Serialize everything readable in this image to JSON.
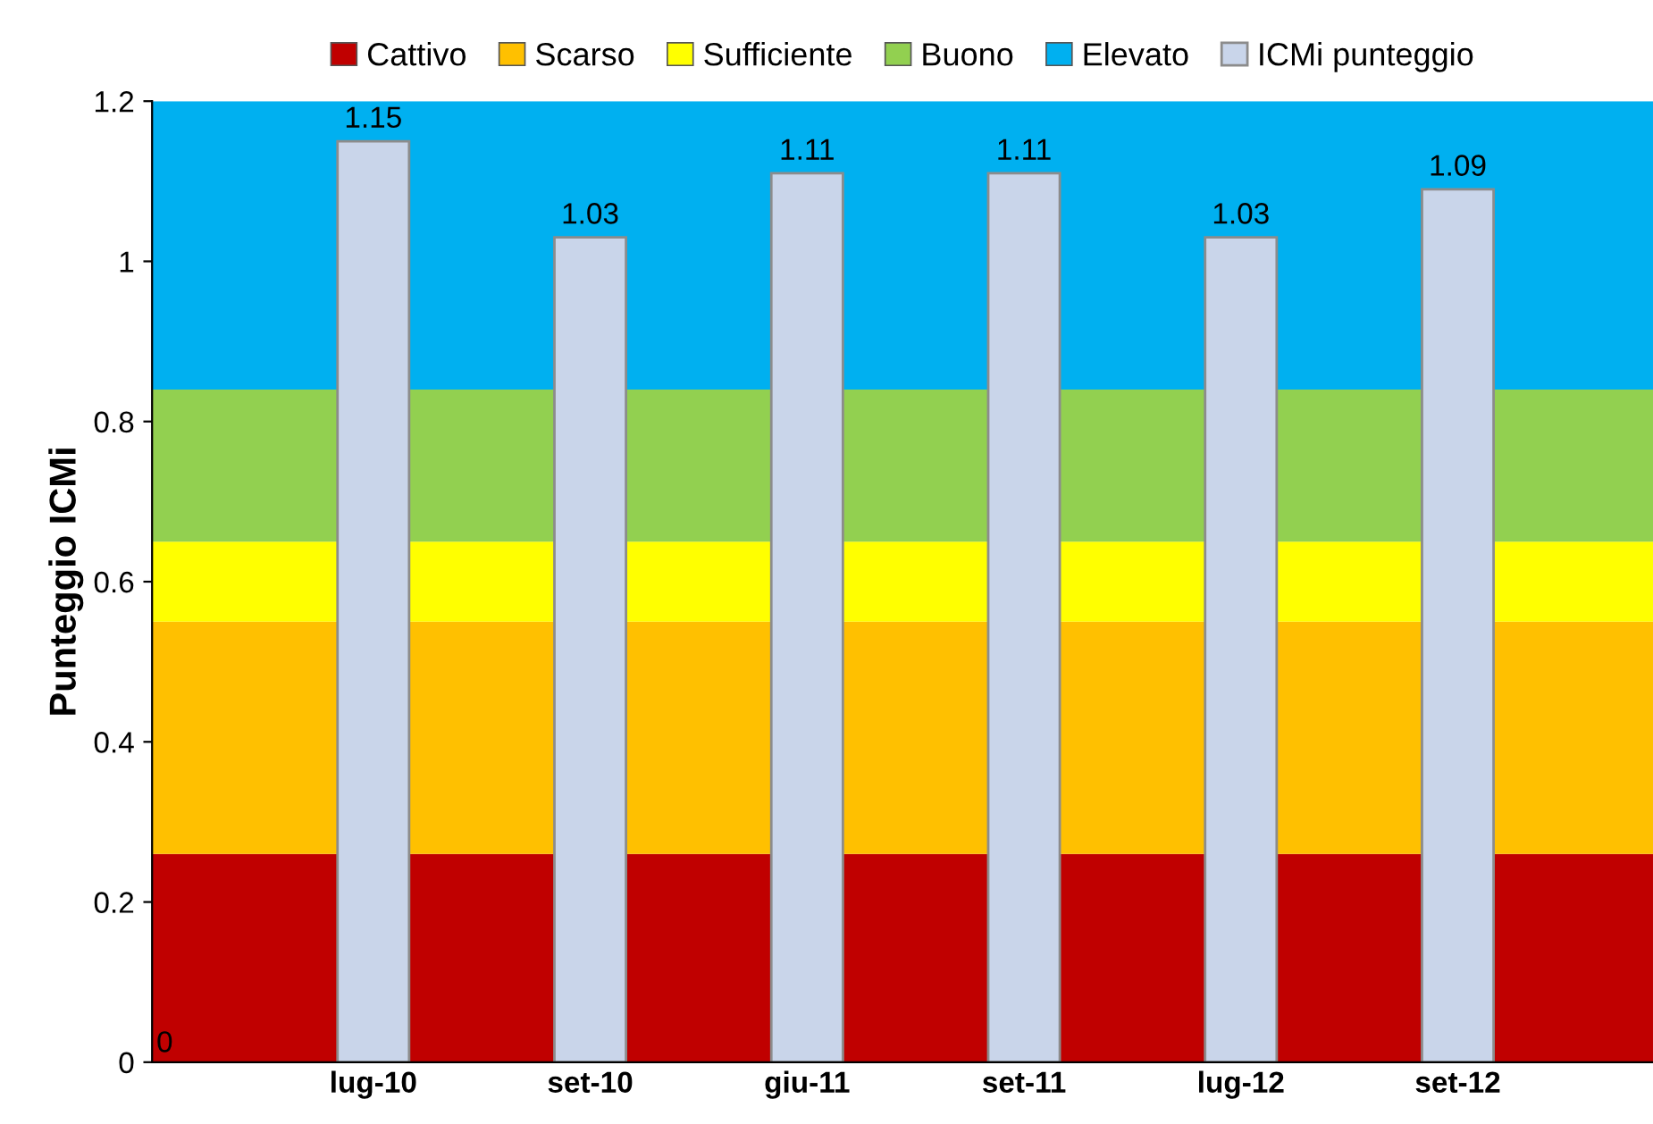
{
  "chart_data": {
    "type": "bar",
    "ylabel": "Punteggio ICMi",
    "categories": [
      "lug-10",
      "set-10",
      "giu-11",
      "set-11",
      "lug-12",
      "set-12"
    ],
    "series": [
      {
        "name": "ICMi punteggio",
        "color": "#c9d5ea",
        "values": [
          1.15,
          1.03,
          1.11,
          1.11,
          1.03,
          1.09
        ]
      }
    ],
    "bands": [
      {
        "axis": "y",
        "from": 0,
        "to": 0.26,
        "label": "Cattivo",
        "color": "#c00000"
      },
      {
        "axis": "y",
        "from": 0.26,
        "to": 0.55,
        "label": "Scarso",
        "color": "#ffc000"
      },
      {
        "axis": "y",
        "from": 0.55,
        "to": 0.65,
        "label": "Sufficiente",
        "color": "#ffff00"
      },
      {
        "axis": "y",
        "from": 0.65,
        "to": 0.84,
        "label": "Buono",
        "color": "#92d050"
      },
      {
        "axis": "y",
        "from": 0.84,
        "to": 1.2,
        "label": "Elevato",
        "color": "#00b0f0"
      }
    ],
    "ylim": [
      0,
      1.2
    ],
    "yticks": [
      0,
      0.2,
      0.4,
      0.6,
      0.8,
      1,
      1.2
    ],
    "data_labels": true,
    "annotations": [
      "0"
    ],
    "legend": "top",
    "grid": false
  }
}
